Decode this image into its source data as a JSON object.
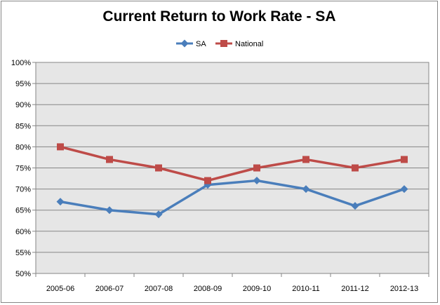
{
  "chart_data": {
    "type": "line",
    "title": "Current Return to Work Rate - SA",
    "categories": [
      "2005-06",
      "2006-07",
      "2007-08",
      "2008-09",
      "2009-10",
      "2010-11",
      "2011-12",
      "2012-13"
    ],
    "series": [
      {
        "name": "SA",
        "values": [
          67,
          65,
          64,
          71,
          72,
          70,
          66,
          70
        ],
        "color": "#4a7ebb",
        "marker": "diamond"
      },
      {
        "name": "National",
        "values": [
          80,
          77,
          75,
          72,
          75,
          77,
          75,
          77
        ],
        "color": "#be4b48",
        "marker": "square"
      }
    ],
    "ylim": [
      50,
      100
    ],
    "ytick_step": 5,
    "ytick_suffix": "%",
    "grid": true,
    "plot_background": "#e6e6e6",
    "legend": "top-center"
  }
}
